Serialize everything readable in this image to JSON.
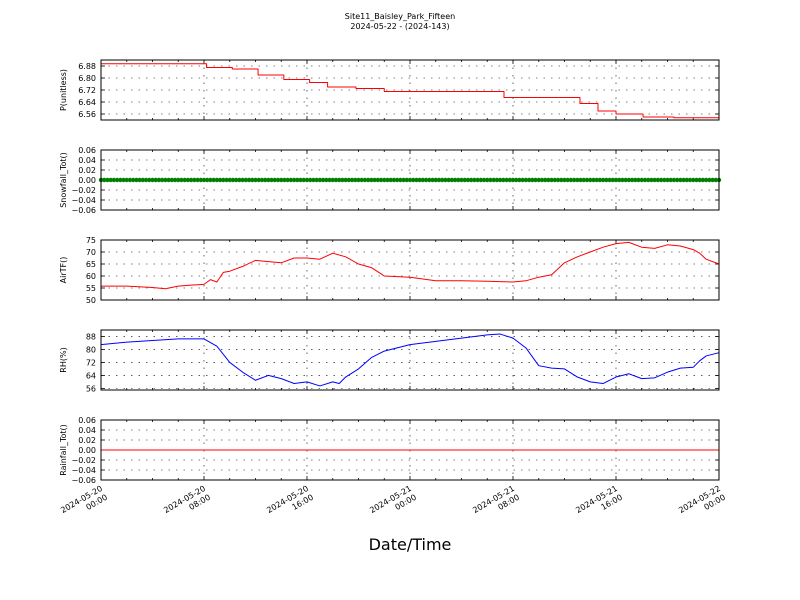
{
  "figure": {
    "title_line1": "Site11_Baisley_Park_Fifteen",
    "title_line2": "2024-05-22 - (2024-143)",
    "xlabel": "Date/Time",
    "x_ticks": [
      {
        "l1": "2024-05-20",
        "l2": "00:00"
      },
      {
        "l1": "2024-05-20",
        "l2": "08:00"
      },
      {
        "l1": "2024-05-20",
        "l2": "16:00"
      },
      {
        "l1": "2024-05-21",
        "l2": "00:00"
      },
      {
        "l1": "2024-05-21",
        "l2": "08:00"
      },
      {
        "l1": "2024-05-21",
        "l2": "16:00"
      },
      {
        "l1": "2024-05-22",
        "l2": "00:00"
      }
    ]
  },
  "chart_data": [
    {
      "type": "line",
      "ylabel": "P(unitless)",
      "color": "#ff0000",
      "ylim": [
        6.52,
        6.92
      ],
      "yticks": [
        "6.56",
        "6.64",
        "6.72",
        "6.80",
        "6.88"
      ],
      "ytick_values": [
        6.56,
        6.64,
        6.72,
        6.8,
        6.88
      ],
      "x_hours": [
        0,
        8.2,
        8.2,
        10.2,
        10.2,
        12.2,
        12.2,
        14.2,
        14.2,
        16.2,
        16.2,
        17.6,
        17.6,
        19.8,
        19.8,
        22,
        22,
        25.3,
        25.3,
        31.3,
        31.3,
        33.1,
        33.1,
        37.2,
        37.2,
        38.6,
        38.6,
        40,
        40,
        42.1,
        42.1,
        44.5,
        44.5,
        48
      ],
      "values": [
        6.895,
        6.895,
        6.87,
        6.87,
        6.86,
        6.86,
        6.82,
        6.82,
        6.79,
        6.79,
        6.77,
        6.77,
        6.74,
        6.74,
        6.73,
        6.73,
        6.71,
        6.71,
        6.71,
        6.71,
        6.67,
        6.67,
        6.67,
        6.67,
        6.63,
        6.63,
        6.58,
        6.58,
        6.56,
        6.56,
        6.54,
        6.54,
        6.535,
        6.535
      ]
    },
    {
      "type": "scatter",
      "ylabel": "Snowfall_Tot()",
      "color": "#008000",
      "ylim": [
        -0.06,
        0.06
      ],
      "yticks": [
        "0.06",
        "0.04",
        "0.02",
        "0.00",
        "−0.02",
        "−0.04",
        "−0.06"
      ],
      "ytick_values": [
        0.06,
        0.04,
        0.02,
        0.0,
        -0.02,
        -0.04,
        -0.06
      ],
      "x_range": [
        0,
        48
      ],
      "interval_hours": 0.25,
      "value": 0.0
    },
    {
      "type": "line",
      "ylabel": "AirTF()",
      "color": "#ff0000",
      "ylim": [
        50,
        75
      ],
      "yticks": [
        "75",
        "70",
        "65",
        "60",
        "55",
        "50"
      ],
      "ytick_values": [
        75,
        70,
        65,
        60,
        55,
        50
      ],
      "x_hours": [
        0,
        2,
        4,
        5,
        6,
        7,
        8,
        8.5,
        9,
        9.5,
        10,
        11,
        12,
        13,
        14,
        15,
        16,
        17,
        18,
        19,
        20,
        21,
        22,
        24,
        26,
        28,
        30,
        32,
        33,
        34,
        35,
        36,
        37,
        38,
        39,
        40,
        41,
        42,
        43,
        44,
        45,
        46,
        46.5,
        47,
        48
      ],
      "values": [
        55.8,
        55.8,
        55.2,
        54.7,
        55.8,
        56.2,
        56.5,
        58.5,
        57.5,
        61.5,
        62,
        64,
        66.5,
        66,
        65.5,
        67.5,
        67.5,
        67,
        69.5,
        68,
        65,
        63.5,
        60,
        59.5,
        58,
        58,
        57.8,
        57.5,
        58,
        59.5,
        60.5,
        65.5,
        68,
        70,
        72,
        73.5,
        74,
        72,
        71.5,
        73,
        72.5,
        71,
        69.5,
        67,
        65
      ]
    },
    {
      "type": "line",
      "ylabel": "RH(%)",
      "color": "#0000ff",
      "ylim": [
        55,
        92
      ],
      "yticks": [
        "88",
        "80",
        "72",
        "64",
        "56"
      ],
      "ytick_values": [
        88,
        80,
        72,
        64,
        56
      ],
      "x_hours": [
        0,
        2,
        4,
        6,
        8,
        9,
        10,
        11,
        12,
        13,
        14,
        15,
        16,
        17,
        18,
        18.5,
        19,
        20,
        21,
        22,
        24,
        26,
        28,
        30,
        31,
        32,
        33,
        34,
        35,
        36,
        37,
        38,
        39,
        40,
        41,
        42,
        43,
        44,
        45,
        46,
        46.5,
        47,
        48
      ],
      "values": [
        83,
        84.5,
        85.5,
        86.5,
        86.5,
        82,
        72,
        66,
        61,
        64,
        62,
        59,
        60,
        57.5,
        60,
        59,
        63,
        68,
        75,
        79,
        83,
        85,
        87,
        89,
        89.5,
        87,
        81,
        70,
        68.5,
        68,
        63,
        60,
        59,
        63,
        65,
        62,
        62.5,
        66,
        68.5,
        69,
        73,
        76,
        78
      ]
    },
    {
      "type": "line",
      "ylabel": "Rainfall_Tot()",
      "color": "#ff0000",
      "ylim": [
        -0.06,
        0.06
      ],
      "yticks": [
        "0.06",
        "0.04",
        "0.02",
        "0.00",
        "−0.02",
        "−0.04",
        "−0.06"
      ],
      "ytick_values": [
        0.06,
        0.04,
        0.02,
        0.0,
        -0.02,
        -0.04,
        -0.06
      ],
      "x_hours": [
        0,
        48
      ],
      "values": [
        0.0,
        0.0
      ]
    }
  ]
}
